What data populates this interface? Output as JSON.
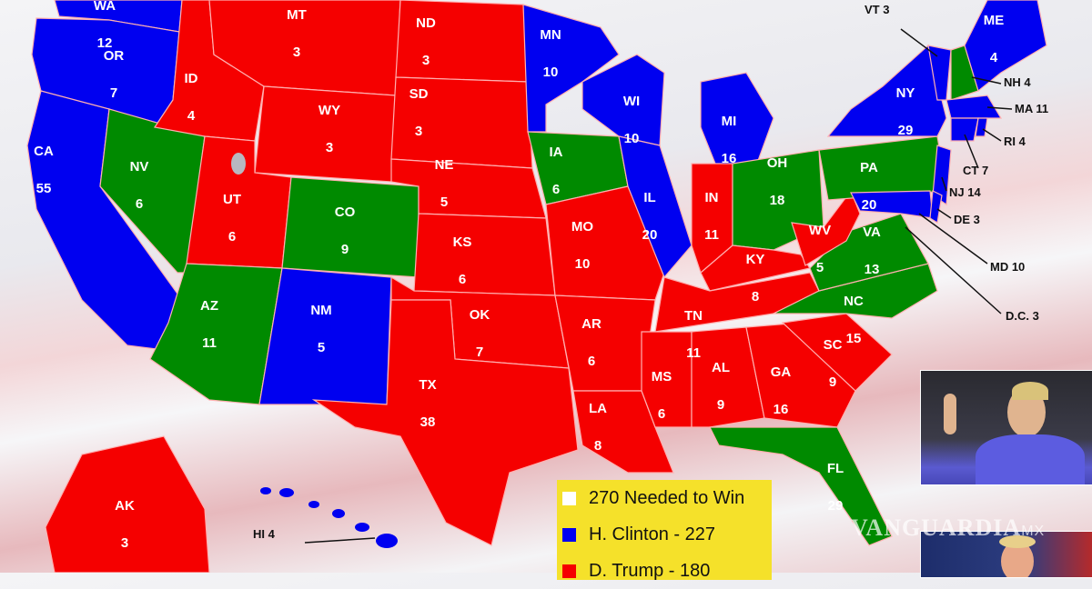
{
  "colors": {
    "clinton": "#0000f0",
    "trump": "#f50000",
    "tossup": "#008a00",
    "needed": "#ffffff",
    "legend_bg": "#f5e12a"
  },
  "states": [
    {
      "abbr": "WA",
      "votes": "12",
      "party": "clinton"
    },
    {
      "abbr": "OR",
      "votes": "7",
      "party": "clinton"
    },
    {
      "abbr": "CA",
      "votes": "55",
      "party": "clinton"
    },
    {
      "abbr": "NV",
      "votes": "6",
      "party": "tossup"
    },
    {
      "abbr": "ID",
      "votes": "4",
      "party": "trump"
    },
    {
      "abbr": "MT",
      "votes": "3",
      "party": "trump"
    },
    {
      "abbr": "WY",
      "votes": "3",
      "party": "trump"
    },
    {
      "abbr": "UT",
      "votes": "6",
      "party": "trump"
    },
    {
      "abbr": "CO",
      "votes": "9",
      "party": "tossup"
    },
    {
      "abbr": "AZ",
      "votes": "11",
      "party": "tossup"
    },
    {
      "abbr": "NM",
      "votes": "5",
      "party": "clinton"
    },
    {
      "abbr": "ND",
      "votes": "3",
      "party": "trump"
    },
    {
      "abbr": "SD",
      "votes": "3",
      "party": "trump"
    },
    {
      "abbr": "NE",
      "votes": "5",
      "party": "trump"
    },
    {
      "abbr": "KS",
      "votes": "6",
      "party": "trump"
    },
    {
      "abbr": "OK",
      "votes": "7",
      "party": "trump"
    },
    {
      "abbr": "TX",
      "votes": "38",
      "party": "trump"
    },
    {
      "abbr": "MN",
      "votes": "10",
      "party": "clinton"
    },
    {
      "abbr": "IA",
      "votes": "6",
      "party": "tossup"
    },
    {
      "abbr": "MO",
      "votes": "10",
      "party": "trump"
    },
    {
      "abbr": "AR",
      "votes": "6",
      "party": "trump"
    },
    {
      "abbr": "LA",
      "votes": "8",
      "party": "trump"
    },
    {
      "abbr": "WI",
      "votes": "10",
      "party": "clinton"
    },
    {
      "abbr": "IL",
      "votes": "20",
      "party": "clinton"
    },
    {
      "abbr": "MI",
      "votes": "16",
      "party": "clinton"
    },
    {
      "abbr": "IN",
      "votes": "11",
      "party": "trump"
    },
    {
      "abbr": "OH",
      "votes": "18",
      "party": "tossup"
    },
    {
      "abbr": "KY",
      "votes": "8",
      "party": "trump"
    },
    {
      "abbr": "TN",
      "votes": "11",
      "party": "trump"
    },
    {
      "abbr": "MS",
      "votes": "6",
      "party": "trump"
    },
    {
      "abbr": "AL",
      "votes": "9",
      "party": "trump"
    },
    {
      "abbr": "GA",
      "votes": "16",
      "party": "trump"
    },
    {
      "abbr": "FL",
      "votes": "29",
      "party": "tossup"
    },
    {
      "abbr": "SC",
      "votes": "9",
      "party": "trump"
    },
    {
      "abbr": "NC",
      "votes": "15",
      "party": "tossup"
    },
    {
      "abbr": "VA",
      "votes": "13",
      "party": "tossup"
    },
    {
      "abbr": "WV",
      "votes": "5",
      "party": "trump"
    },
    {
      "abbr": "PA",
      "votes": "20",
      "party": "tossup"
    },
    {
      "abbr": "NY",
      "votes": "29",
      "party": "clinton"
    },
    {
      "abbr": "NJ",
      "votes": "14",
      "party": "clinton"
    },
    {
      "abbr": "MD",
      "votes": "10",
      "party": "clinton"
    },
    {
      "abbr": "DE",
      "votes": "3",
      "party": "clinton"
    },
    {
      "abbr": "VT",
      "votes": "3",
      "party": "clinton"
    },
    {
      "abbr": "NH",
      "votes": "4",
      "party": "tossup"
    },
    {
      "abbr": "ME",
      "votes": "4",
      "party": "clinton"
    },
    {
      "abbr": "MA",
      "votes": "11",
      "party": "clinton"
    },
    {
      "abbr": "CT",
      "votes": "7",
      "party": "clinton"
    },
    {
      "abbr": "RI",
      "votes": "4",
      "party": "clinton"
    },
    {
      "abbr": "AK",
      "votes": "3",
      "party": "trump"
    },
    {
      "abbr": "HI",
      "votes": "4",
      "party": "clinton"
    },
    {
      "abbr": "D.C.",
      "votes": "3",
      "party": "clinton"
    }
  ],
  "legend": [
    {
      "label": "270 Needed to Win",
      "color": "#ffffff"
    },
    {
      "label": "H. Clinton - 227",
      "color": "#0000f0"
    },
    {
      "label": "D. Trump - 180",
      "color": "#f50000"
    }
  ],
  "watermark": {
    "brand": "VANGUARDIA",
    "suffix": "MX"
  }
}
